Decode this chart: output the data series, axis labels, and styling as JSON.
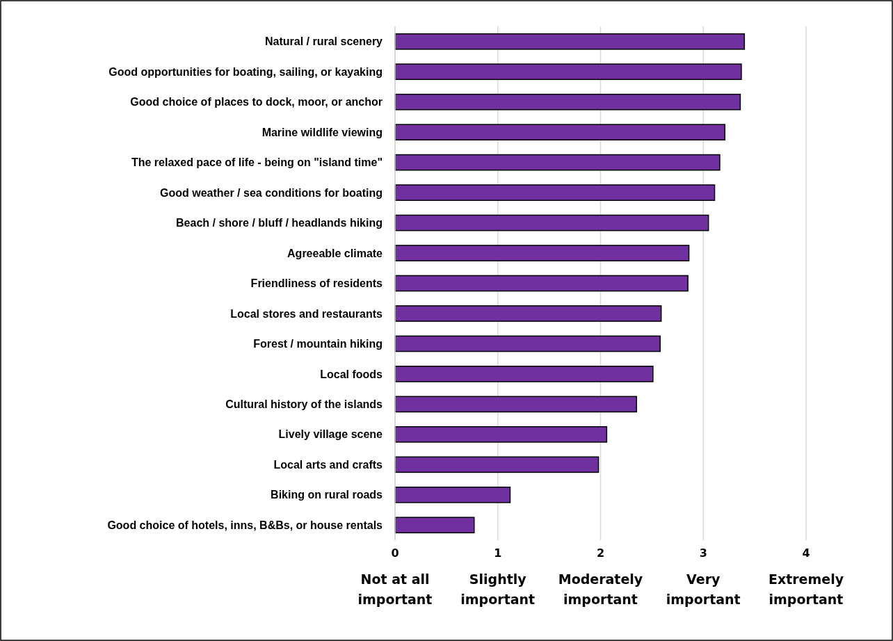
{
  "chart_data": {
    "type": "bar",
    "orientation": "horizontal",
    "categories": [
      "Natural / rural scenery",
      "Good opportunities for boating, sailing, or kayaking",
      "Good choice of places to dock, moor, or anchor",
      "Marine wildlife viewing",
      "The relaxed pace of life - being on \"island time\"",
      "Good weather / sea conditions for boating",
      "Beach / shore / bluff / headlands hiking",
      "Agreeable climate",
      "Friendliness of residents",
      "Local stores and restaurants",
      "Forest / mountain hiking",
      "Local foods",
      "Cultural history of the islands",
      "Lively village scene",
      "Local arts and crafts",
      "Biking on rural roads",
      "Good choice of hotels, inns, B&Bs, or house rentals"
    ],
    "values": [
      3.4,
      3.37,
      3.36,
      3.21,
      3.16,
      3.11,
      3.05,
      2.86,
      2.85,
      2.59,
      2.58,
      2.51,
      2.35,
      2.06,
      1.98,
      1.12,
      0.77
    ],
    "color": "#7030a0",
    "xlim": [
      0,
      4
    ],
    "xticks": [
      0,
      1,
      2,
      3,
      4
    ],
    "grid": "x",
    "annotations": [
      "Not at all important",
      "Slightly important",
      "Moderately important",
      "Very important",
      "Extremely important"
    ]
  }
}
